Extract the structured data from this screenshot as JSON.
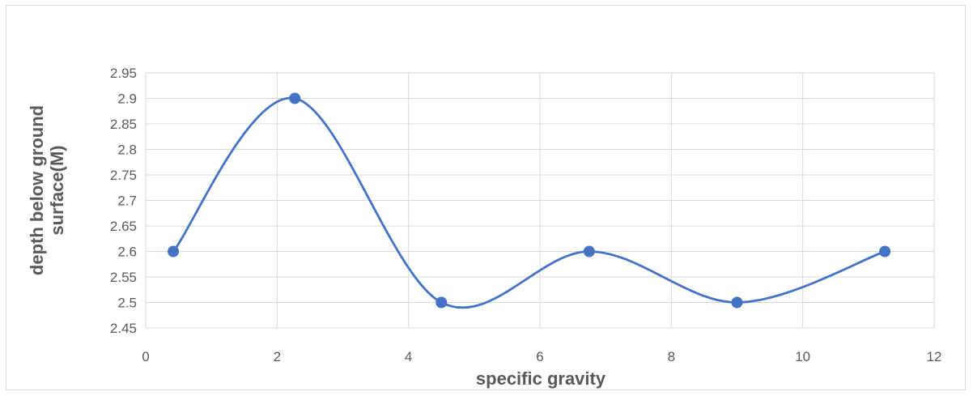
{
  "chart_data": {
    "type": "scatter",
    "title": "",
    "xlabel": "specific gravity",
    "ylabel_lines": [
      "depth below ground",
      "surface(M)"
    ],
    "xlim": [
      0,
      12
    ],
    "ylim": [
      2.45,
      2.95
    ],
    "x_ticks": [
      0,
      2,
      4,
      6,
      8,
      10,
      12
    ],
    "y_ticks": [
      2.45,
      2.5,
      2.55,
      2.6,
      2.65,
      2.7,
      2.75,
      2.8,
      2.85,
      2.9,
      2.95
    ],
    "grid": "on",
    "legend": "none",
    "smooth": true,
    "series": [
      {
        "color": "#4472c4",
        "x": [
          0.42,
          2.27,
          4.5,
          6.75,
          9.0,
          11.25
        ],
        "y": [
          2.6,
          2.9,
          2.5,
          2.6,
          2.5,
          2.6
        ]
      }
    ]
  }
}
